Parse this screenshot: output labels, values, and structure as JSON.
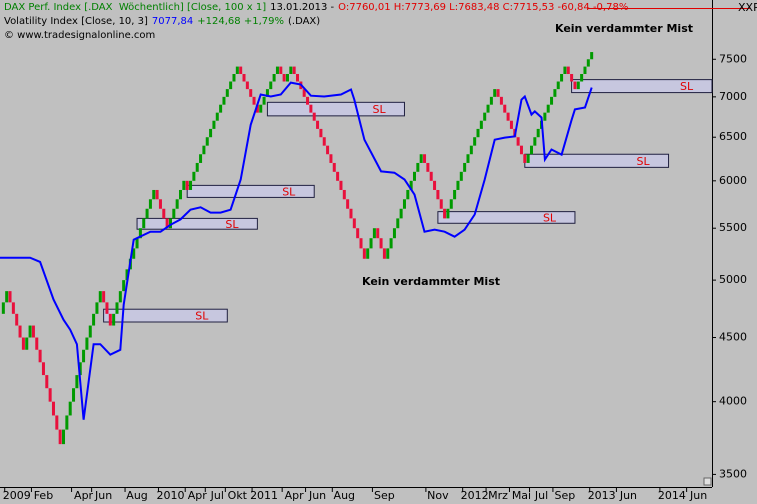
{
  "chart_data": {
    "type": "renko",
    "header": {
      "line1": [
        {
          "text": "DAX Perf. Index [.DAX  Wöchentlich] [Close, 100 x 1]",
          "color": "#008000"
        },
        {
          "text": "13.01.2013 -",
          "color": "#000000"
        },
        {
          "text": "O:7760,01 H:7773,69 L:7683,48 C:7715,53 -60,84 -0,78%",
          "color": "#e00000"
        }
      ],
      "line2": [
        {
          "text": "Volatility Index [Close, 10, 3]",
          "color": "#000000"
        },
        {
          "text": "7077,84",
          "color": "#0000ff"
        },
        {
          "text": "+124,68 +1,79%",
          "color": "#008000"
        },
        {
          "text": "(.DAX)",
          "color": "#000000"
        }
      ],
      "line3": "© www.tradesignalonline.com",
      "corner": "XXP"
    },
    "log_scale": true,
    "ylim": [
      3420,
      8180
    ],
    "yticks": [
      3500,
      4000,
      4500,
      5000,
      5500,
      6000,
      6500,
      7000,
      7500
    ],
    "xlim": [
      0,
      213
    ],
    "xticks": [
      {
        "value": 5,
        "label": "2009"
      },
      {
        "value": 13,
        "label": "Feb"
      },
      {
        "value": 25,
        "label": "Apr"
      },
      {
        "value": 31,
        "label": "Jun"
      },
      {
        "value": 41,
        "label": "Aug"
      },
      {
        "value": 51,
        "label": "2010"
      },
      {
        "value": 59,
        "label": "Apr"
      },
      {
        "value": 65,
        "label": "Jul"
      },
      {
        "value": 71,
        "label": "Okt"
      },
      {
        "value": 79,
        "label": "2011"
      },
      {
        "value": 88,
        "label": "Apr"
      },
      {
        "value": 95,
        "label": "Jun"
      },
      {
        "value": 103,
        "label": "Aug"
      },
      {
        "value": 115,
        "label": "Sep"
      },
      {
        "value": 131,
        "label": "Nov"
      },
      {
        "value": 142,
        "label": "2012"
      },
      {
        "value": 149,
        "label": "Mrz"
      },
      {
        "value": 156,
        "label": "Mai"
      },
      {
        "value": 162,
        "label": "Jul"
      },
      {
        "value": 169,
        "label": "Sep"
      },
      {
        "value": 180,
        "label": "2013"
      },
      {
        "value": 188,
        "label": "Jun"
      },
      {
        "value": 201,
        "label": "2014"
      },
      {
        "value": 209,
        "label": "Jun"
      }
    ],
    "series": [
      {
        "type": "renko",
        "brick": 100,
        "up_color": "#009a00",
        "down_color": "#e8103c",
        "values": [
          4800,
          4900,
          4800,
          4700,
          4600,
          4500,
          4400,
          4500,
          4600,
          4500,
          4400,
          4300,
          4200,
          4100,
          4000,
          3900,
          3800,
          3700,
          3800,
          3900,
          4000,
          4100,
          4200,
          4300,
          4400,
          4500,
          4600,
          4700,
          4800,
          4900,
          4800,
          4700,
          4600,
          4700,
          4800,
          4900,
          5000,
          5100,
          5200,
          5300,
          5400,
          5500,
          5600,
          5700,
          5800,
          5900,
          5800,
          5700,
          5600,
          5500,
          5600,
          5700,
          5800,
          5900,
          6000,
          5900,
          6000,
          6100,
          6200,
          6300,
          6400,
          6500,
          6600,
          6700,
          6800,
          6900,
          7000,
          7100,
          7200,
          7300,
          7400,
          7300,
          7200,
          7100,
          7000,
          6900,
          6800,
          6900,
          7000,
          7100,
          7200,
          7300,
          7400,
          7300,
          7200,
          7300,
          7400,
          7300,
          7200,
          7100,
          7000,
          6900,
          6800,
          6700,
          6600,
          6500,
          6400,
          6300,
          6200,
          6100,
          6000,
          5900,
          5800,
          5700,
          5600,
          5500,
          5400,
          5300,
          5200,
          5300,
          5400,
          5500,
          5400,
          5300,
          5200,
          5300,
          5400,
          5500,
          5600,
          5700,
          5800,
          5900,
          6000,
          6100,
          6200,
          6300,
          6200,
          6100,
          6000,
          5900,
          5800,
          5700,
          5600,
          5700,
          5800,
          5900,
          6000,
          6100,
          6200,
          6300,
          6400,
          6500,
          6600,
          6700,
          6800,
          6900,
          7000,
          7100,
          7000,
          6900,
          6800,
          6700,
          6600,
          6500,
          6400,
          6300,
          6200,
          6300,
          6400,
          6500,
          6600,
          6700,
          6800,
          6900,
          7000,
          7100,
          7200,
          7300,
          7400,
          7300,
          7200,
          7100,
          7200,
          7300,
          7400,
          7500,
          7600
        ]
      },
      {
        "type": "line",
        "color": "#0000ff",
        "x": [
          0,
          9,
          12,
          16,
          19,
          21,
          23,
          25,
          28,
          30,
          33,
          36,
          37,
          40,
          45,
          48,
          51,
          54,
          57,
          60,
          63,
          66,
          69,
          72,
          75,
          78,
          81,
          84,
          87,
          90,
          93,
          97,
          102,
          105,
          106,
          109,
          114,
          118,
          121,
          124,
          127,
          130,
          133,
          136,
          139,
          142,
          145,
          148,
          151,
          154,
          156,
          157,
          159,
          160,
          162,
          163,
          165,
          168,
          171,
          172,
          175,
          177
        ],
        "values": [
          5210,
          5210,
          5170,
          4825,
          4650,
          4565,
          4445,
          3870,
          4445,
          4445,
          4360,
          4400,
          4780,
          5385,
          5465,
          5465,
          5535,
          5590,
          5690,
          5715,
          5660,
          5660,
          5690,
          6015,
          6650,
          7030,
          7005,
          7030,
          7185,
          7160,
          7015,
          7005,
          7030,
          7095,
          6965,
          6470,
          6105,
          6090,
          6015,
          5850,
          5465,
          5485,
          5465,
          5415,
          5485,
          5640,
          6015,
          6470,
          6495,
          6510,
          6965,
          7005,
          6775,
          6815,
          6740,
          6240,
          6355,
          6295,
          6710,
          6840,
          6865,
          7120
        ]
      }
    ],
    "sl_boxes": [
      {
        "label": "SL",
        "x": [
          31,
          68
        ],
        "y": [
          4630,
          4740
        ]
      },
      {
        "label": "SL",
        "x": [
          41,
          77
        ],
        "y": [
          5490,
          5600
        ]
      },
      {
        "label": "SL",
        "x": [
          56,
          94
        ],
        "y": [
          5820,
          5950
        ]
      },
      {
        "label": "SL",
        "x": [
          80,
          121
        ],
        "y": [
          6760,
          6930
        ]
      },
      {
        "label": "SL",
        "x": [
          131,
          172
        ],
        "y": [
          5550,
          5670
        ]
      },
      {
        "label": "SL",
        "x": [
          157,
          200
        ],
        "y": [
          6150,
          6300
        ]
      },
      {
        "label": "SL",
        "x": [
          171,
          213
        ],
        "y": [
          7055,
          7225
        ]
      }
    ],
    "annotations": [
      {
        "text": "Kein verdammter Mist"
      },
      {
        "text": "Kein verdammter Mist"
      }
    ]
  }
}
